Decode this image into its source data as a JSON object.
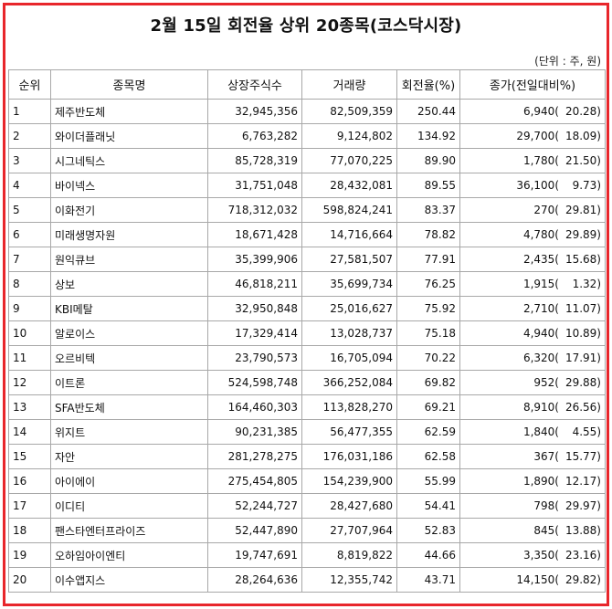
{
  "title": "2월 15일 회전율 상위 20종목(코스닥시장)",
  "unit_note": "(단위 : 주, 원)",
  "columns": [
    "순위",
    "종목명",
    "상장주식수",
    "거래량",
    "회전율(%)",
    "종가(전일대비%)"
  ],
  "rows": [
    {
      "rank": "1",
      "name": "제주반도체",
      "listed": "32,945,356",
      "volume": "82,509,359",
      "turnover": "250.44",
      "price": "6,940(",
      "change": "20.28)"
    },
    {
      "rank": "2",
      "name": "와이더플래닛",
      "listed": "6,763,282",
      "volume": "9,124,802",
      "turnover": "134.92",
      "price": "29,700(",
      "change": "18.09)"
    },
    {
      "rank": "3",
      "name": "시그네틱스",
      "listed": "85,728,319",
      "volume": "77,070,225",
      "turnover": "89.90",
      "price": "1,780(",
      "change": "21.50)"
    },
    {
      "rank": "4",
      "name": "바이넥스",
      "listed": "31,751,048",
      "volume": "28,432,081",
      "turnover": "89.55",
      "price": "36,100(",
      "change": "9.73)"
    },
    {
      "rank": "5",
      "name": "이화전기",
      "listed": "718,312,032",
      "volume": "598,824,241",
      "turnover": "83.37",
      "price": "270(",
      "change": "29.81)"
    },
    {
      "rank": "6",
      "name": "미래생명자원",
      "listed": "18,671,428",
      "volume": "14,716,664",
      "turnover": "78.82",
      "price": "4,780(",
      "change": "29.89)"
    },
    {
      "rank": "7",
      "name": "원익큐브",
      "listed": "35,399,906",
      "volume": "27,581,507",
      "turnover": "77.91",
      "price": "2,435(",
      "change": "15.68)"
    },
    {
      "rank": "8",
      "name": "상보",
      "listed": "46,818,211",
      "volume": "35,699,734",
      "turnover": "76.25",
      "price": "1,915(",
      "change": "1.32)"
    },
    {
      "rank": "9",
      "name": "KBI메탈",
      "listed": "32,950,848",
      "volume": "25,016,627",
      "turnover": "75.92",
      "price": "2,710(",
      "change": "11.07)"
    },
    {
      "rank": "10",
      "name": "알로이스",
      "listed": "17,329,414",
      "volume": "13,028,737",
      "turnover": "75.18",
      "price": "4,940(",
      "change": "10.89)"
    },
    {
      "rank": "11",
      "name": "오르비텍",
      "listed": "23,790,573",
      "volume": "16,705,094",
      "turnover": "70.22",
      "price": "6,320(",
      "change": "17.91)"
    },
    {
      "rank": "12",
      "name": "이트론",
      "listed": "524,598,748",
      "volume": "366,252,084",
      "turnover": "69.82",
      "price": "952(",
      "change": "29.88)"
    },
    {
      "rank": "13",
      "name": "SFA반도체",
      "listed": "164,460,303",
      "volume": "113,828,270",
      "turnover": "69.21",
      "price": "8,910(",
      "change": "26.56)"
    },
    {
      "rank": "14",
      "name": "위지트",
      "listed": "90,231,385",
      "volume": "56,477,355",
      "turnover": "62.59",
      "price": "1,840(",
      "change": "4.55)"
    },
    {
      "rank": "15",
      "name": "자안",
      "listed": "281,278,275",
      "volume": "176,031,186",
      "turnover": "62.58",
      "price": "367(",
      "change": "15.77)"
    },
    {
      "rank": "16",
      "name": "아이에이",
      "listed": "275,454,805",
      "volume": "154,239,900",
      "turnover": "55.99",
      "price": "1,890(",
      "change": "12.17)"
    },
    {
      "rank": "17",
      "name": "이디티",
      "listed": "52,244,727",
      "volume": "28,427,680",
      "turnover": "54.41",
      "price": "798(",
      "change": "29.97)"
    },
    {
      "rank": "18",
      "name": "팬스타엔터프라이즈",
      "listed": "52,447,890",
      "volume": "27,707,964",
      "turnover": "52.83",
      "price": "845(",
      "change": "13.88)"
    },
    {
      "rank": "19",
      "name": "오하임아이엔티",
      "listed": "19,747,691",
      "volume": "8,819,822",
      "turnover": "44.66",
      "price": "3,350(",
      "change": "23.16)"
    },
    {
      "rank": "20",
      "name": "이수앱지스",
      "listed": "28,264,636",
      "volume": "12,355,742",
      "turnover": "43.71",
      "price": "14,150(",
      "change": "29.82)"
    }
  ]
}
